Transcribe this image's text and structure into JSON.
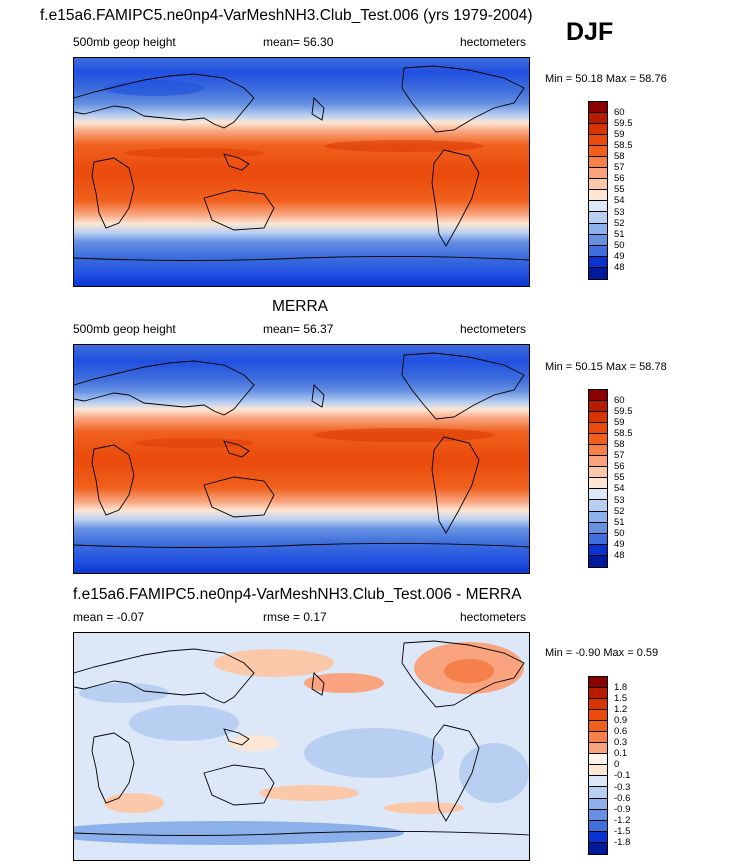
{
  "season_label": "DJF",
  "colors": {
    "height_levels": [
      "#8b0000",
      "#b81c00",
      "#d83300",
      "#ea4a0c",
      "#f0601c",
      "#f5804a",
      "#f9a47e",
      "#fcc8aa",
      "#fde6d4",
      "#dce8f8",
      "#b8cff2",
      "#8cb0ea",
      "#6690e2",
      "#3f6fdc",
      "#2050e0",
      "#0a32d0",
      "#001a9c",
      "#000a78"
    ],
    "diff_levels": [
      "#8b0000",
      "#b81c00",
      "#d83300",
      "#ea4a0c",
      "#f0601c",
      "#f5804a",
      "#f9a47e",
      "#fcc8aa",
      "#fde6d4",
      "#dce8f8",
      "#b8cff2",
      "#8cb0ea",
      "#6690e2",
      "#3f6fdc",
      "#2050e0",
      "#0a32d0",
      "#001a9c",
      "#000a78"
    ]
  },
  "chart_data": [
    {
      "type": "heatmap",
      "title": "f.e15a6.FAMIPC5.ne0np4-VarMeshNH3.Club_Test.006 (yrs 1979-2004)",
      "left_label": "500mb geop height",
      "center_label": "mean=  56.30",
      "right_label": "hectometers",
      "mean": 56.3,
      "min": 50.18,
      "max": 58.76,
      "minmax_text": "Min =  50.18 Max =  58.76",
      "colorbar_levels": [
        "60",
        "59.5",
        "59",
        "58.5",
        "58",
        "57",
        "56",
        "55",
        "54",
        "53",
        "52",
        "51",
        "50",
        "49",
        "48"
      ],
      "grid_lat": [
        90,
        80,
        70,
        60,
        50,
        40,
        30,
        20,
        10,
        0,
        -10,
        -20,
        -30,
        -40,
        -50,
        -60,
        -70,
        -80,
        -90
      ],
      "grid_field": "model"
    },
    {
      "type": "heatmap",
      "title": "MERRA",
      "left_label": "500mb geop height",
      "center_label": "mean=  56.37",
      "right_label": "hectometers",
      "mean": 56.37,
      "min": 50.15,
      "max": 58.78,
      "minmax_text": "Min =  50.15 Max =  58.78",
      "colorbar_levels": [
        "60",
        "59.5",
        "59",
        "58.5",
        "58",
        "57",
        "56",
        "55",
        "54",
        "53",
        "52",
        "51",
        "50",
        "49",
        "48"
      ],
      "grid_field": "obs"
    },
    {
      "type": "heatmap",
      "title": "f.e15a6.FAMIPC5.ne0np4-VarMeshNH3.Club_Test.006 - MERRA",
      "left_label": "mean =  -0.07",
      "center_label": "rmse =   0.17",
      "right_label": "hectometers",
      "mean": -0.07,
      "rmse": 0.17,
      "min": -0.9,
      "max": 0.59,
      "minmax_text": "Min =  -0.90 Max =   0.59",
      "colorbar_levels": [
        "1.8",
        "1.5",
        "1.2",
        "0.9",
        "0.6",
        "0.3",
        "0.1",
        "0",
        "-0.1",
        "-0.3",
        "-0.6",
        "-0.9",
        "-1.2",
        "-1.5",
        "-1.8"
      ],
      "grid_field": "diff"
    }
  ]
}
